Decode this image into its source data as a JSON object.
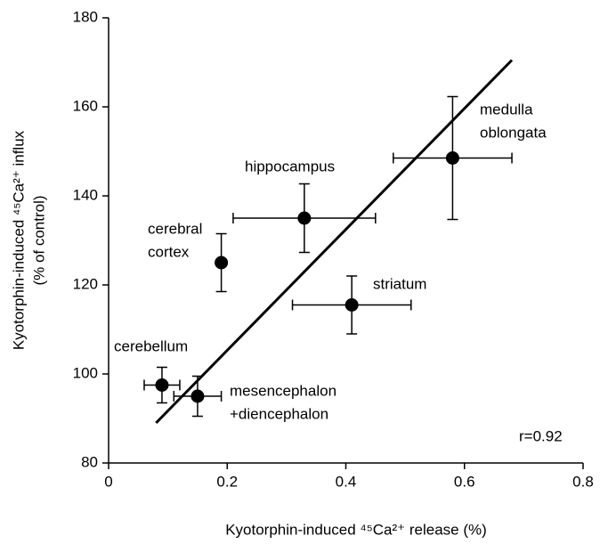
{
  "chart_data": {
    "type": "scatter",
    "xlabel": "Kyotorphin-induced ⁴⁵Ca²⁺ release (%)",
    "ylabel": [
      "Kyotorphin-induced ⁴⁵Ca²⁺ influx",
      "(% of control)"
    ],
    "xlim": [
      0,
      0.8
    ],
    "xticks": [
      0,
      0.2,
      0.4,
      0.6,
      0.8
    ],
    "ylim": [
      80,
      180
    ],
    "yticks": [
      80,
      100,
      120,
      140,
      160,
      180
    ],
    "color": "#000000",
    "points": {
      "labels": [
        [
          "cerebellum"
        ],
        [
          "mesencephalon",
          "+diencephalon"
        ],
        [
          "cerebral",
          "cortex"
        ],
        [
          "hippocampus"
        ],
        [
          "striatum"
        ],
        [
          "medulla",
          "oblongata"
        ]
      ],
      "x": [
        0.09,
        0.15,
        0.19,
        0.33,
        0.41,
        0.58
      ],
      "y": [
        97.5,
        95,
        125,
        135,
        115.5,
        148.5
      ],
      "xerr": [
        0.03,
        0.04,
        null,
        0.12,
        0.1,
        0.1
      ],
      "yerr": [
        4,
        4.5,
        6.5,
        7.7,
        6.5,
        13.8
      ]
    },
    "fit_line": {
      "x": [
        0.08,
        0.68
      ],
      "y": [
        89,
        170.5
      ]
    },
    "annotation": "r=0.92"
  }
}
